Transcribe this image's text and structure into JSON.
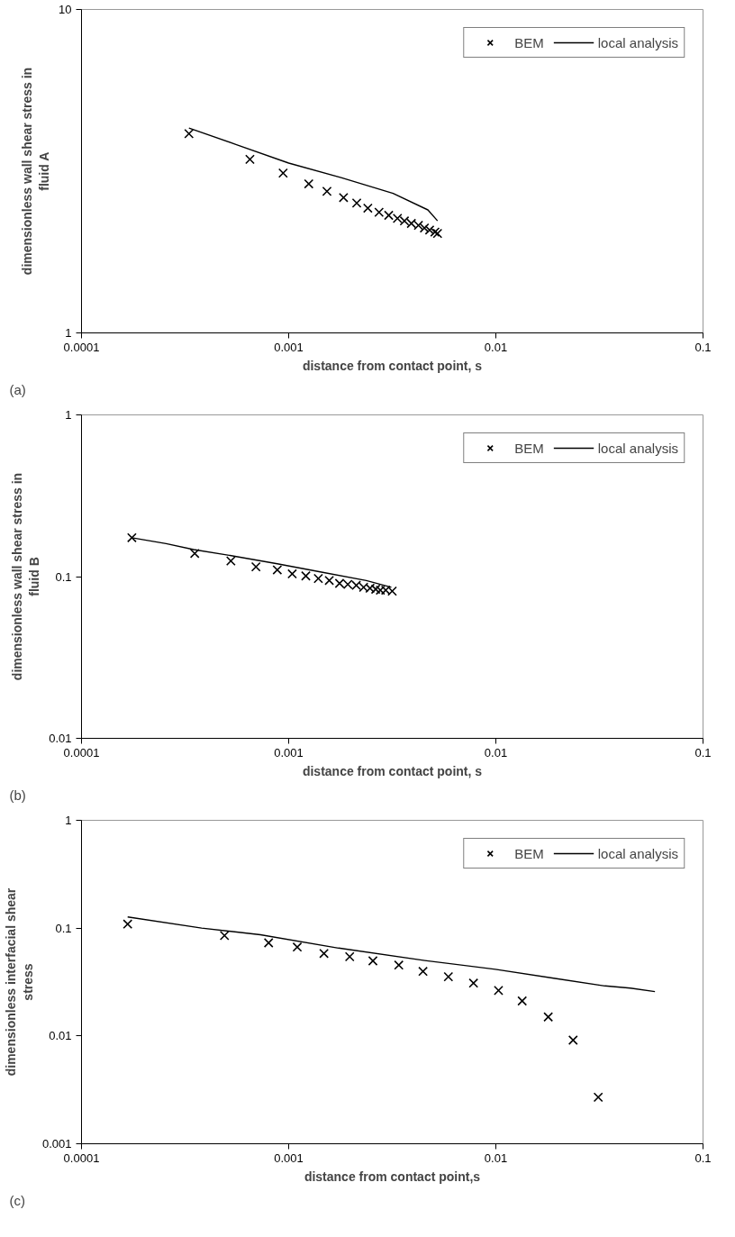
{
  "chart_data": [
    {
      "type": "scatter",
      "xlabel": "distance from contact point, s",
      "ylabel": "dimensionless wall shear stress in fluid A",
      "log": "xy",
      "xlim": [
        0.0001,
        0.1
      ],
      "ylim": [
        1,
        10
      ],
      "xticks": [
        0.0001,
        0.001,
        0.01,
        0.1
      ],
      "yticks": [
        1,
        10
      ],
      "grid": false,
      "legend": "top right",
      "annotations": [
        "(a)"
      ],
      "series": [
        {
          "name": "BEM",
          "marker": "cross",
          "color": "#000000",
          "x": [
            0.00033,
            0.00065,
            0.00094,
            0.00125,
            0.00153,
            0.00184,
            0.00213,
            0.00241,
            0.00273,
            0.00304,
            0.00335,
            0.00362,
            0.00391,
            0.00423,
            0.00452,
            0.00479,
            0.00508,
            0.00523
          ],
          "values": [
            4.13,
            3.44,
            3.12,
            2.89,
            2.74,
            2.62,
            2.52,
            2.43,
            2.36,
            2.31,
            2.26,
            2.22,
            2.18,
            2.15,
            2.11,
            2.08,
            2.05,
            2.03
          ]
        },
        {
          "name": "local analysis",
          "type": "line",
          "line_style": "solid",
          "color": "#000000",
          "x": [
            0.00033,
            0.00056,
            0.001,
            0.00179,
            0.00319,
            0.0047,
            0.00523
          ],
          "values": [
            4.3,
            3.82,
            3.35,
            3.02,
            2.7,
            2.4,
            2.22
          ]
        }
      ]
    },
    {
      "type": "scatter",
      "xlabel": "distance from contact point, s",
      "ylabel": "dimensionless wall shear stress in fluid B",
      "log": "xy",
      "xlim": [
        0.0001,
        0.1
      ],
      "ylim": [
        0.01,
        1
      ],
      "xticks": [
        0.0001,
        0.001,
        0.01,
        0.1
      ],
      "yticks": [
        0.01,
        0.1,
        1
      ],
      "grid": false,
      "legend": "top right",
      "annotations": [
        "(b)"
      ],
      "series": [
        {
          "name": "BEM",
          "marker": "cross",
          "color": "#000000",
          "x": [
            0.000175,
            0.000352,
            0.000526,
            0.000695,
            0.000881,
            0.00104,
            0.00121,
            0.00139,
            0.00157,
            0.00176,
            0.00193,
            0.00212,
            0.0023,
            0.00247,
            0.00263,
            0.00277,
            0.00294,
            0.00316
          ],
          "values": [
            0.174,
            0.139,
            0.125,
            0.115,
            0.11,
            0.104,
            0.101,
            0.0973,
            0.0946,
            0.0908,
            0.0895,
            0.0883,
            0.0859,
            0.0847,
            0.0836,
            0.0824,
            0.0824,
            0.0813
          ]
        },
        {
          "name": "local analysis",
          "type": "line",
          "line_style": "solid",
          "color": "#000000",
          "x": [
            0.000175,
            0.000256,
            0.000348,
            0.000543,
            0.000881,
            0.00142,
            0.00237,
            0.00313
          ],
          "values": [
            0.174,
            0.16,
            0.147,
            0.134,
            0.12,
            0.107,
            0.0946,
            0.0859
          ]
        }
      ]
    },
    {
      "type": "scatter",
      "xlabel": "distance from contact point,s",
      "ylabel": "dimensionless interfacial shear stress",
      "log": "xy",
      "xlim": [
        0.0001,
        0.1
      ],
      "ylim": [
        0.001,
        1
      ],
      "xticks": [
        0.0001,
        0.001,
        0.01,
        0.1
      ],
      "yticks": [
        0.001,
        0.01,
        0.1,
        1
      ],
      "grid": false,
      "legend": "top right",
      "annotations": [
        "(c)"
      ],
      "series": [
        {
          "name": "BEM",
          "marker": "cross",
          "color": "#000000",
          "x": [
            0.000167,
            0.00049,
            0.0008,
            0.0011,
            0.00148,
            0.00197,
            0.00255,
            0.0034,
            0.00445,
            0.0059,
            0.0078,
            0.0103,
            0.0134,
            0.0179,
            0.0236,
            0.0312
          ],
          "values": [
            0.109,
            0.0854,
            0.073,
            0.0667,
            0.0582,
            0.0543,
            0.0497,
            0.0454,
            0.0397,
            0.0354,
            0.0309,
            0.0264,
            0.0211,
            0.015,
            0.00914,
            0.0027
          ]
        },
        {
          "name": "local analysis",
          "type": "line",
          "line_style": "solid",
          "color": "#000000",
          "x": [
            0.000167,
            0.00038,
            0.00073,
            0.00174,
            0.00454,
            0.00994,
            0.019,
            0.0336,
            0.0446,
            0.0586
          ],
          "values": [
            0.127,
            0.1,
            0.0869,
            0.0653,
            0.0501,
            0.0415,
            0.0343,
            0.0291,
            0.0278,
            0.0258
          ]
        }
      ]
    }
  ]
}
